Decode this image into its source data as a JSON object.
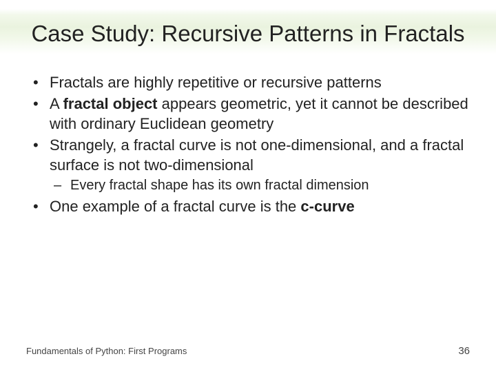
{
  "title": "Case Study: Recursive Patterns in Fractals",
  "bullets": {
    "b1": "Fractals are highly repetitive or recursive patterns",
    "b2a": "A ",
    "b2b": "fractal object",
    "b2c": " appears geometric, yet it cannot be described with ordinary Euclidean geometry",
    "b3": "Strangely, a fractal curve is not one-dimensional, and a fractal surface is not two-dimensional",
    "b3s1": "Every fractal shape has its own fractal dimension",
    "b4a": "One example of a fractal curve is the ",
    "b4b": "c-curve"
  },
  "footer": {
    "left": "Fundamentals of Python: First Programs",
    "page": "36"
  },
  "style": {
    "title_fontsize": 33,
    "body_fontsize": 22,
    "sub_fontsize": 20,
    "footer_fontsize": 13,
    "text_color": "#222222",
    "band_tint": "#eaf3df",
    "background": "#ffffff"
  }
}
